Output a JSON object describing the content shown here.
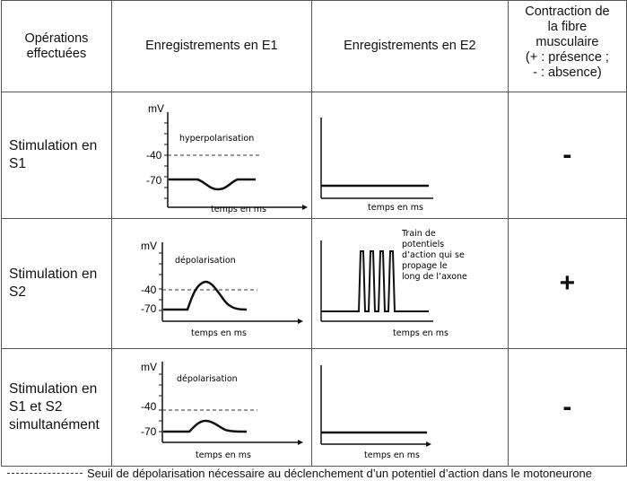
{
  "table": {
    "headers": {
      "operations": "Opérations effectuées",
      "e1": "Enregistrements en E1",
      "e2": "Enregistrements en E2",
      "contraction": [
        "Contraction de",
        "la fibre",
        "musculaire",
        "(+ : présence ;",
        "- : absence)"
      ]
    },
    "rows": [
      {
        "operation": "Stimulation en S1",
        "e1_label": "hyperpolarisation",
        "e2_label": "",
        "contraction": "-"
      },
      {
        "operation": "Stimulation en S2",
        "e1_label": "dépolarisation",
        "e2_label": [
          "Train de",
          "potentiels",
          "d’action qui se",
          "propage le",
          "long de l’axone"
        ],
        "contraction": "+"
      },
      {
        "operation": "Stimulation en S1 et S2 simultanément",
        "e1_label": "dépolarisation",
        "e2_label": "",
        "contraction": "-"
      }
    ],
    "axis": {
      "y_unit": "mV",
      "y_tick_threshold": "-40",
      "y_tick_rest": "-70",
      "x_label": "temps en ms"
    }
  },
  "footnote": "Seuil de dépolarisation nécessaire au déclenchement d’un potentiel d’action dans le motoneurone"
}
